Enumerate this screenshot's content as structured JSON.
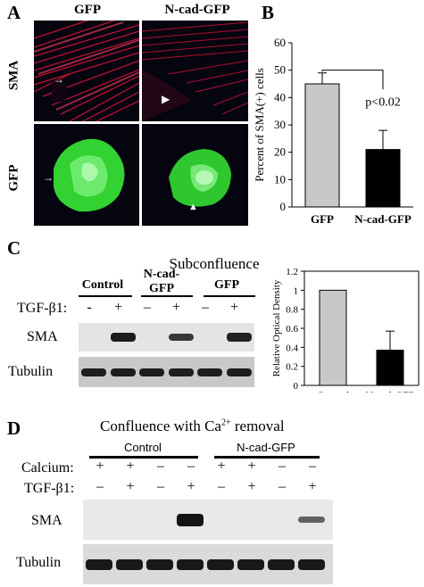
{
  "panelA": {
    "label": "A",
    "col_headers": [
      "GFP",
      "N-cad-GFP"
    ],
    "row_headers": [
      "SMA",
      "GFP"
    ]
  },
  "panelB": {
    "label": "B",
    "annotation": "p<0.02"
  },
  "panelC": {
    "label": "C",
    "title": "Subconfluence",
    "groups": [
      "Control",
      "N-cad-\nGFP",
      "GFP"
    ],
    "treatment_label": "TGF-β1:",
    "treatment_values": [
      "-",
      "+",
      "–",
      "+",
      "–",
      "+"
    ],
    "rows": [
      "SMA",
      "Tubulin"
    ],
    "sma_levels": [
      0.0,
      0.95,
      0.0,
      0.75,
      0.0,
      0.9
    ]
  },
  "panelD": {
    "label": "D",
    "title_prefix": "Confluence with Ca",
    "title_sup": "2+",
    "title_suffix": " removal",
    "groups": [
      "Control",
      "N-cad-GFP"
    ],
    "calcium_label": "Calcium:",
    "calcium_values": [
      "+",
      "+",
      "–",
      "–",
      "+",
      "+",
      "–",
      "–"
    ],
    "treatment_label": "TGF-β1:",
    "treatment_values": [
      "–",
      "+",
      "–",
      "+",
      "–",
      "+",
      "–",
      "+"
    ],
    "rows": [
      "SMA",
      "Tubulin"
    ],
    "sma_levels": [
      0.0,
      0.0,
      0.0,
      1.0,
      0.0,
      0.0,
      0.0,
      0.45
    ]
  },
  "chart_data": [
    {
      "type": "bar",
      "categories": [
        "GFP",
        "N-cad-GFP"
      ],
      "values": [
        45,
        21
      ],
      "errors": [
        4,
        7
      ],
      "colors": [
        "#c8c8c8",
        "#000000"
      ],
      "xlabel": "",
      "ylabel": "Percent of SMA(+) cells",
      "ylim": [
        0,
        60
      ],
      "yticks": [
        0,
        10,
        20,
        30,
        40,
        50,
        60
      ],
      "annotation": "p<0.02"
    },
    {
      "type": "bar",
      "categories": [
        "Control",
        "N-cad-GFP"
      ],
      "values": [
        1.0,
        0.37
      ],
      "errors": [
        0,
        0.2
      ],
      "colors": [
        "#c8c8c8",
        "#000000"
      ],
      "xlabel": "",
      "ylabel": "Relative Optical Density",
      "ylim": [
        0,
        1.2
      ],
      "yticks": [
        0,
        0.2,
        0.4,
        0.6,
        0.8,
        1,
        1.2
      ]
    }
  ]
}
